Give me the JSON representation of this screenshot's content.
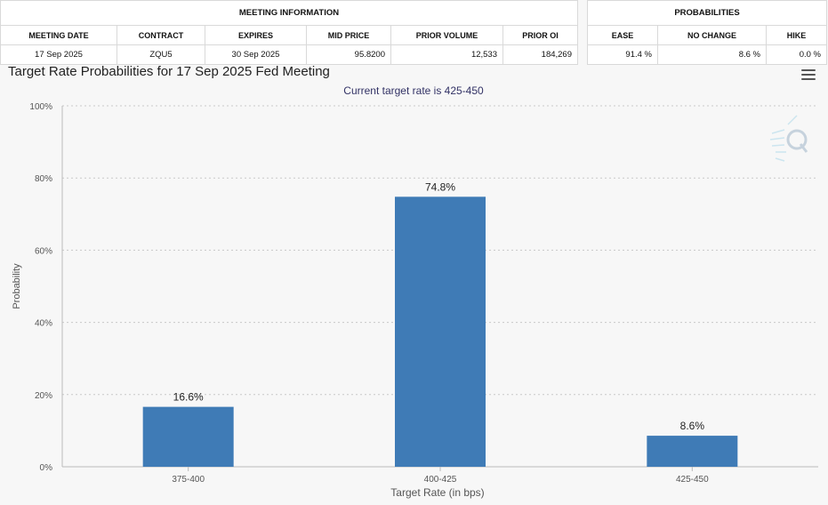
{
  "meeting_info": {
    "group_title": "MEETING INFORMATION",
    "headers": [
      "MEETING DATE",
      "CONTRACT",
      "EXPIRES",
      "MID PRICE",
      "PRIOR VOLUME",
      "PRIOR OI"
    ],
    "row": [
      "17 Sep 2025",
      "ZQU5",
      "30 Sep 2025",
      "95.8200",
      "12,533",
      "184,269"
    ]
  },
  "probabilities": {
    "group_title": "PROBABILITIES",
    "headers": [
      "EASE",
      "NO CHANGE",
      "HIKE"
    ],
    "row": [
      "91.4 %",
      "8.6 %",
      "0.0 %"
    ]
  },
  "chart": {
    "title": "Target Rate Probabilities for 17 Sep 2025 Fed Meeting",
    "subtitle": "Current target rate is 425-450",
    "menu_icon": "hamburger-menu-icon",
    "watermark_icon": "q-logo-icon"
  },
  "chart_data": {
    "type": "bar",
    "categories": [
      "375-400",
      "400-425",
      "425-450"
    ],
    "values": [
      16.6,
      74.8,
      8.6
    ],
    "data_labels": [
      "16.6%",
      "74.8%",
      "8.6%"
    ],
    "xlabel": "Target Rate (in bps)",
    "ylabel": "Probability",
    "ylim": [
      0,
      100
    ],
    "yticks": [
      "0%",
      "20%",
      "40%",
      "60%",
      "80%",
      "100%"
    ],
    "grid": "horizontal dotted",
    "bar_color": "#3f7bb6"
  }
}
